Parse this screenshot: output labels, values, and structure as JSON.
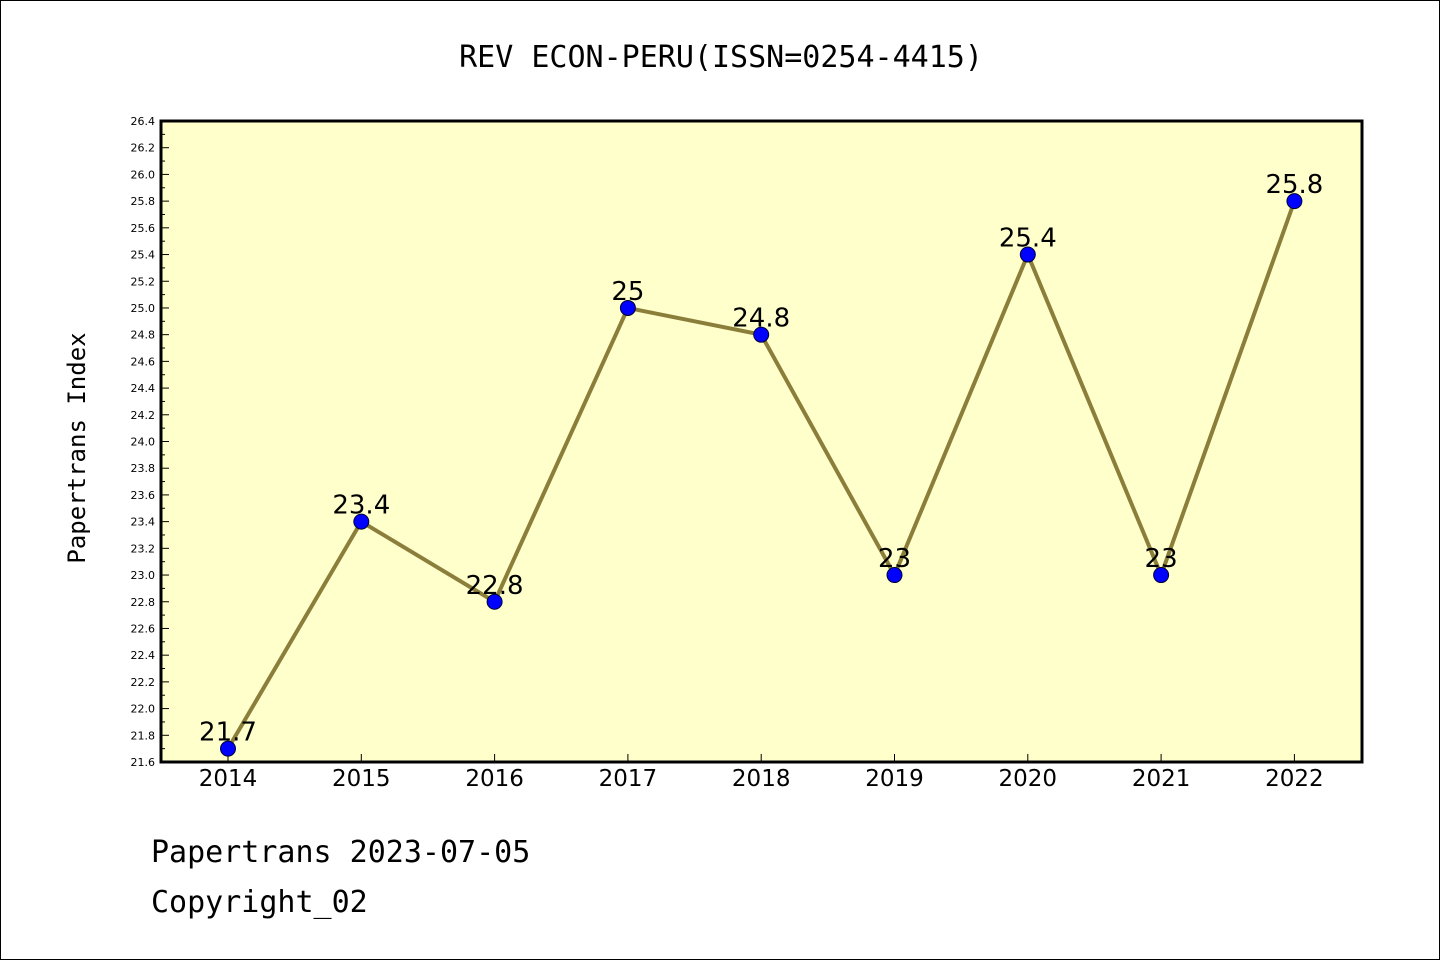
{
  "chart_data": {
    "type": "line",
    "title": "REV ECON-PERU(ISSN=0254-4415)",
    "xlabel": "",
    "ylabel": "Papertrans Index",
    "categories": [
      "2014",
      "2015",
      "2016",
      "2017",
      "2018",
      "2019",
      "2020",
      "2021",
      "2022"
    ],
    "values": [
      21.7,
      23.4,
      22.8,
      25,
      24.8,
      23,
      25.4,
      23,
      25.8
    ],
    "data_labels": [
      "21.7",
      "23.4",
      "22.8",
      "25",
      "24.8",
      "23",
      "25.4",
      "23",
      "25.8"
    ],
    "ylim": [
      21.6,
      26.4
    ],
    "yticks": [
      "21.6",
      "21.8",
      "22.0",
      "22.2",
      "22.4",
      "22.6",
      "22.8",
      "23.0",
      "23.2",
      "23.4",
      "23.6",
      "23.8",
      "24.0",
      "24.2",
      "24.4",
      "24.6",
      "24.8",
      "25.0",
      "25.2",
      "25.4",
      "25.6",
      "25.8",
      "26.0",
      "26.2",
      "26.4"
    ],
    "grid": false,
    "colors": {
      "plot_bg": "#ffffcc",
      "line": "#8b7d3a",
      "marker": "#0000ff"
    }
  },
  "footer": {
    "line1": "Papertrans 2023-07-05",
    "line2": "Copyright_02"
  }
}
